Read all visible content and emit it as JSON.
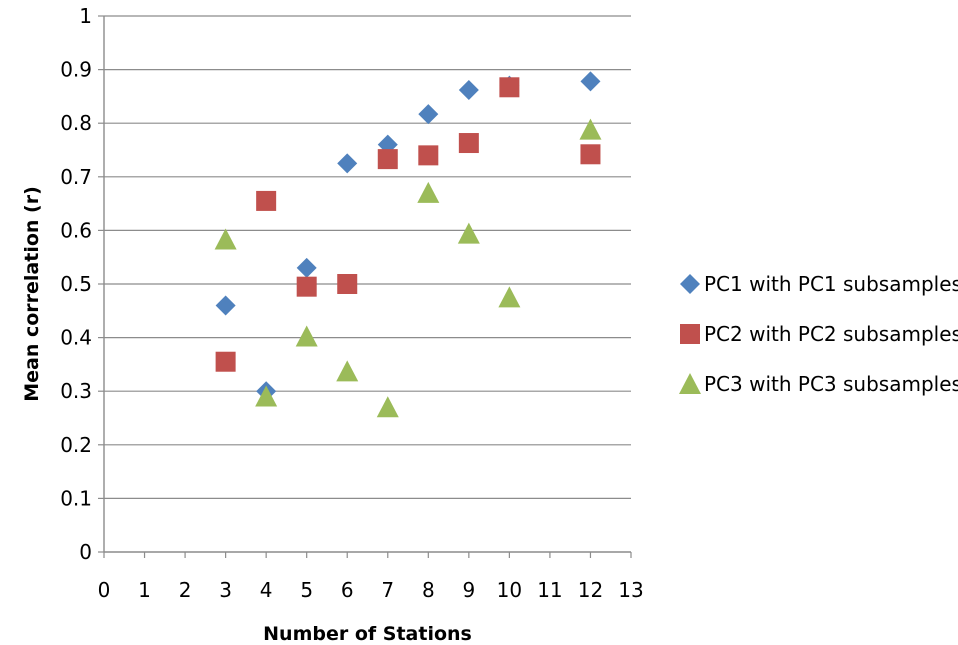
{
  "chart_data": {
    "type": "scatter",
    "title": "",
    "xlabel": "Number of Stations",
    "ylabel": "Mean correlation (r)",
    "xlim": [
      0,
      13
    ],
    "ylim": [
      0,
      1
    ],
    "x_ticks": [
      0,
      1,
      2,
      3,
      4,
      5,
      6,
      7,
      8,
      9,
      10,
      11,
      12,
      13
    ],
    "y_ticks": [
      0,
      0.1,
      0.2,
      0.3,
      0.4,
      0.5,
      0.6,
      0.7,
      0.8,
      0.9,
      1
    ],
    "y_tick_labels": [
      "0",
      "0.1",
      "0.2",
      "0.3",
      "0.4",
      "0.5",
      "0.6",
      "0.7",
      "0.8",
      "0.9",
      "1"
    ],
    "grid": "horizontal",
    "legend_position": "right",
    "series": [
      {
        "name": "PC1 with PC1 subsamples",
        "marker": "diamond",
        "color": "#4F81BD",
        "points": [
          [
            3,
            0.46
          ],
          [
            4,
            0.3
          ],
          [
            5,
            0.53
          ],
          [
            6,
            0.725
          ],
          [
            7,
            0.76
          ],
          [
            8,
            0.817
          ],
          [
            9,
            0.862
          ],
          [
            10,
            0.87
          ],
          [
            12,
            0.878
          ]
        ]
      },
      {
        "name": "PC2 with PC2 subsamples",
        "marker": "square",
        "color": "#C0504D",
        "points": [
          [
            3,
            0.355
          ],
          [
            4,
            0.655
          ],
          [
            5,
            0.495
          ],
          [
            6,
            0.5
          ],
          [
            7,
            0.733
          ],
          [
            8,
            0.74
          ],
          [
            9,
            0.763
          ],
          [
            10,
            0.867
          ],
          [
            12,
            0.742
          ]
        ]
      },
      {
        "name": "PC3 with PC3 subsamples",
        "marker": "triangle",
        "color": "#9BBB59",
        "points": [
          [
            3,
            0.583
          ],
          [
            4,
            0.29
          ],
          [
            5,
            0.402
          ],
          [
            6,
            0.337
          ],
          [
            7,
            0.27
          ],
          [
            8,
            0.67
          ],
          [
            9,
            0.594
          ],
          [
            10,
            0.475
          ],
          [
            12,
            0.788
          ]
        ]
      }
    ]
  }
}
